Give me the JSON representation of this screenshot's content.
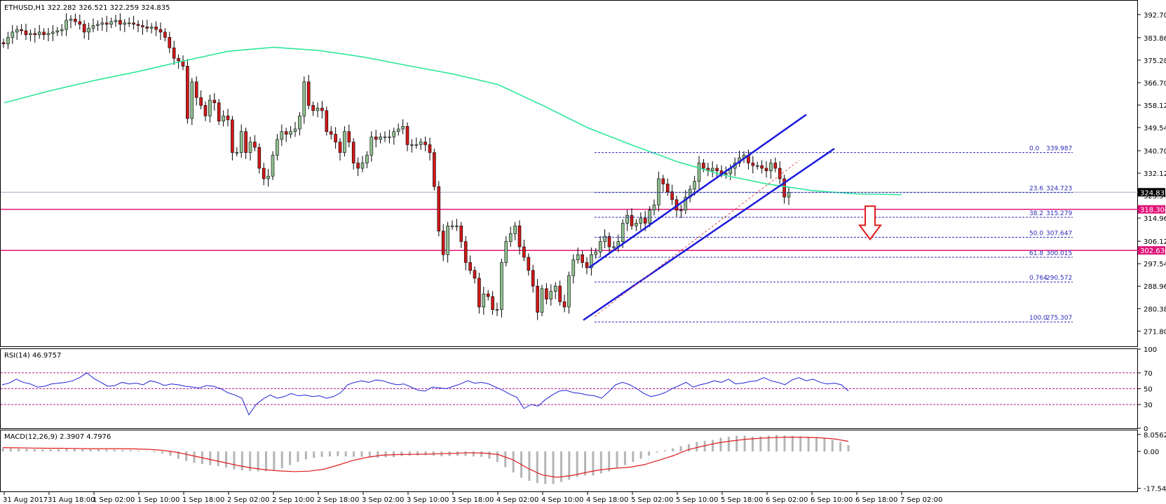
{
  "chart_data": [
    {
      "type": "candlestick",
      "title": "ETHUSD,H1  322.282 326.521 322.259 324.835",
      "price_axis": {
        "ylim": [
          266,
          398
        ],
        "ticks": [
          "392.700",
          "383.860",
          "375.280",
          "366.700",
          "358.120",
          "349.540",
          "340.700",
          "332.120",
          "323.540",
          "314.960",
          "306.120",
          "297.540",
          "288.960",
          "280.380",
          "271.800"
        ]
      },
      "time_axis": {
        "labels": [
          "31 Aug 2017",
          "31 Aug 18:00",
          "1 Sep 02:00",
          "1 Sep 10:00",
          "1 Sep 18:00",
          "2 Sep 02:00",
          "2 Sep 10:00",
          "2 Sep 18:00",
          "3 Sep 02:00",
          "3 Sep 10:00",
          "3 Sep 18:00",
          "4 Sep 02:00",
          "4 Sep 10:00",
          "4 Sep 18:00",
          "5 Sep 02:00",
          "5 Sep 10:00",
          "5 Sep 18:00",
          "6 Sep 02:00",
          "6 Sep 10:00",
          "6 Sep 18:00",
          "7 Sep 02:00"
        ]
      },
      "price_tags": [
        {
          "value": 324.835,
          "label": "324.835",
          "color": "#000000"
        },
        {
          "value": 318.304,
          "label": "318.304",
          "color": "#e0147a"
        },
        {
          "value": 302.63,
          "label": "302.630",
          "color": "#e0147a"
        }
      ],
      "horizontal_lines": [
        {
          "value": 318.304,
          "color": "#e0147a"
        },
        {
          "value": 302.63,
          "color": "#e0147a"
        },
        {
          "value": 324.835,
          "color": "#a0aec0"
        }
      ],
      "fibonacci": [
        {
          "level": "0.0",
          "price": "339.987",
          "value": 339.987
        },
        {
          "level": "23.6",
          "price": "324.723",
          "value": 324.723
        },
        {
          "level": "38.2",
          "price": "315.279",
          "value": 315.279
        },
        {
          "level": "50.0",
          "price": "307.647",
          "value": 307.647
        },
        {
          "level": "61.8",
          "price": "300.015",
          "value": 300.015
        },
        {
          "level": "0.764",
          "price": "290.572",
          "value": 290.572
        },
        {
          "level": "100.0",
          "price": "275.307",
          "value": 275.307
        }
      ],
      "colors": {
        "bull": "#8fbf8f",
        "bear": "#d11919",
        "ma": "#2ee89a",
        "channel": "#1a1adc",
        "fib": "#2b2bb8",
        "arrow": "#e11d1d"
      },
      "candles_close": [
        381.5,
        384.0,
        386.0,
        387.0,
        386.5,
        385.0,
        385.5,
        385.0,
        386.0,
        385.0,
        385.5,
        386.0,
        386.5,
        387.0,
        390.5,
        391.0,
        390.0,
        389.0,
        386.0,
        387.5,
        388.5,
        389.0,
        389.5,
        389.0,
        390.0,
        390.5,
        389.0,
        389.5,
        389.5,
        389.0,
        388.5,
        388.0,
        387.5,
        388.0,
        387.0,
        386.0,
        384.0,
        380.0,
        376.0,
        375.0,
        373.0,
        353.0,
        367.0,
        361.0,
        358.0,
        354.0,
        360.0,
        359.0,
        352.0,
        354.0,
        352.5,
        340.0,
        340.0,
        348.0,
        340.0,
        344.0,
        342.0,
        334.0,
        330.0,
        331.0,
        339.0,
        345.0,
        348.0,
        347.0,
        348.0,
        349.0,
        354.0,
        367.0,
        358.0,
        356.0,
        357.0,
        356.0,
        348.0,
        347.0,
        344.0,
        340.0,
        348.0,
        344.0,
        336.0,
        334.0,
        336.0,
        339.0,
        346.0,
        345.0,
        346.0,
        346.0,
        346.0,
        348.0,
        349.0,
        350.0,
        343.0,
        343.0,
        343.0,
        344.0,
        343.0,
        340.0,
        327.0,
        310.0,
        301.0,
        312.0,
        312.0,
        312.0,
        306.0,
        298.0,
        295.0,
        292.0,
        281.0,
        286.0,
        285.0,
        280.0,
        280.0,
        298.0,
        306.0,
        309.0,
        312.0,
        304.0,
        300.0,
        295.0,
        289.0,
        279.0,
        288.0,
        284.0,
        287.0,
        289.0,
        283.0,
        281.0,
        293.0,
        299.0,
        301.0,
        298.0,
        296.0,
        301.0,
        302.0,
        306.0,
        308.0,
        304.0,
        304.0,
        306.0,
        313.0,
        316.0,
        312.0,
        313.0,
        315.0,
        313.0,
        318.0,
        320.0,
        330.0,
        328.0,
        325.0,
        322.0,
        318.0,
        318.0,
        323.0,
        326.0,
        329.0,
        336.0,
        334.0,
        333.0,
        334.0,
        333.0,
        332.0,
        332.0,
        334.0,
        336.0,
        338.0,
        339.0,
        336.0,
        335.0,
        335.0,
        334.0,
        333.0,
        336.0,
        334.0,
        330.0,
        323.0,
        324.8
      ],
      "moving_average": [
        {
          "date": "31 Aug 2017",
          "value": 359.0
        },
        {
          "date": "31 Aug 18:00",
          "value": 363.5
        },
        {
          "date": "1 Sep 02:00",
          "value": 367.5
        },
        {
          "date": "1 Sep 10:00",
          "value": 371.0
        },
        {
          "date": "1 Sep 18:00",
          "value": 375.0
        },
        {
          "date": "2 Sep 02:00",
          "value": 378.7
        },
        {
          "date": "2 Sep 10:00",
          "value": 380.2
        },
        {
          "date": "2 Sep 18:00",
          "value": 379.0
        },
        {
          "date": "3 Sep 02:00",
          "value": 376.5
        },
        {
          "date": "3 Sep 10:00",
          "value": 373.2
        },
        {
          "date": "3 Sep 18:00",
          "value": 370.0
        },
        {
          "date": "4 Sep 02:00",
          "value": 366.0
        },
        {
          "date": "4 Sep 10:00",
          "value": 358.0
        },
        {
          "date": "4 Sep 18:00",
          "value": 349.5
        },
        {
          "date": "5 Sep 02:00",
          "value": 342.8
        },
        {
          "date": "5 Sep 10:00",
          "value": 336.5
        },
        {
          "date": "5 Sep 18:00",
          "value": 331.5
        },
        {
          "date": "6 Sep 02:00",
          "value": 328.0
        },
        {
          "date": "6 Sep 10:00",
          "value": 325.5
        },
        {
          "date": "6 Sep 18:00",
          "value": 324.2
        },
        {
          "date": "7 Sep 02:00",
          "value": 323.9
        }
      ]
    },
    {
      "type": "line",
      "title": "RSI(14) 46.9757",
      "ylim": [
        0,
        100
      ],
      "ticks": [
        "100",
        "70",
        "50",
        "30",
        "0"
      ],
      "levels": [
        70,
        50,
        30
      ],
      "color": "#2323d4",
      "values": [
        55,
        57,
        62,
        58,
        56,
        52,
        53,
        56,
        57,
        58,
        60,
        64,
        70,
        63,
        58,
        53,
        54,
        58,
        56,
        57,
        55,
        60,
        58,
        54,
        56,
        55,
        53,
        52,
        51,
        54,
        53,
        50,
        45,
        42,
        38,
        17,
        30,
        37,
        42,
        38,
        40,
        44,
        41,
        42,
        40,
        41,
        38,
        40,
        45,
        55,
        58,
        60,
        58,
        61,
        60,
        57,
        55,
        56,
        52,
        48,
        47,
        52,
        51,
        50,
        53,
        56,
        60,
        57,
        58,
        56,
        52,
        48,
        43,
        39,
        25,
        30,
        28,
        36,
        42,
        47,
        48,
        45,
        44,
        42,
        41,
        38,
        46,
        55,
        58,
        55,
        50,
        44,
        40,
        42,
        45,
        50,
        54,
        58,
        52,
        55,
        57,
        60,
        58,
        62,
        56,
        57,
        59,
        60,
        64,
        60,
        58,
        55,
        61,
        64,
        60,
        62,
        58,
        56,
        57,
        55,
        47
      ]
    },
    {
      "type": "bar+line",
      "title": "MACD(12,26,9) 2.3907 4.7976",
      "ylim": [
        -19,
        10
      ],
      "ticks": [
        "8.0562",
        "0.00",
        "-17.5449"
      ],
      "histogram_color": "#b5b5b5",
      "signal_color": "#e11d1d",
      "histogram": [
        1.5,
        1.4,
        1.3,
        1.2,
        1.1,
        1.0,
        1.0,
        1.1,
        1.2,
        1.2,
        1.1,
        1.0,
        1.0,
        0.9,
        0.8,
        0.7,
        0.6,
        0.4,
        0.2,
        -0.5,
        -1.0,
        -2.0,
        -3.5,
        -4.5,
        -5.5,
        -6.0,
        -6.5,
        -7.0,
        -7.8,
        -8.5,
        -9.0,
        -9.3,
        -9.5,
        -9.4,
        -9.0,
        -8.0,
        -6.5,
        -5.0,
        -3.8,
        -3.0,
        -2.6,
        -2.4,
        -2.2,
        -2.4,
        -2.5,
        -2.6,
        -2.8,
        -3.0,
        -2.8,
        -2.7,
        -2.2,
        -2.0,
        -1.9,
        -1.8,
        -2.0,
        -2.3,
        -2.2,
        -2.1,
        -2.2,
        -2.4,
        -2.6,
        -3.4,
        -5.0,
        -7.5,
        -10.0,
        -12.5,
        -14.0,
        -15.0,
        -15.5,
        -15.5,
        -14.5,
        -13.5,
        -12.0,
        -11.5,
        -11.5,
        -10.5,
        -9.5,
        -8.0,
        -6.5,
        -5.0,
        -3.5,
        -2.0,
        -0.5,
        0.5,
        1.5,
        2.5,
        3.5,
        4.5,
        5.0,
        5.5,
        6.5,
        7.0,
        7.5,
        7.5,
        7.0,
        7.2,
        7.5,
        7.8,
        7.6,
        7.4,
        7.2,
        7.0,
        6.8,
        6.5,
        5.5,
        4.5,
        3.0
      ],
      "signal": [
        1.8,
        1.7,
        1.6,
        1.5,
        1.5,
        1.4,
        1.3,
        1.3,
        1.3,
        1.2,
        1.0,
        0.5,
        -0.5,
        -2.0,
        -3.5,
        -5.0,
        -6.5,
        -7.8,
        -8.7,
        -9.3,
        -9.6,
        -9.4,
        -8.5,
        -6.5,
        -4.3,
        -2.8,
        -1.8,
        -1.5,
        -1.4,
        -1.3,
        -1.1,
        -0.9,
        -0.6,
        -0.8,
        -1.5,
        -4.0,
        -8.0,
        -11.2,
        -12.3,
        -11.5,
        -10.0,
        -8.7,
        -8.0,
        -7.5,
        -6.3,
        -4.2,
        -2.0,
        0.8,
        2.5,
        4.0,
        5.0,
        5.8,
        6.3,
        6.6,
        6.8,
        6.7,
        6.5,
        6.0,
        4.8
      ]
    }
  ]
}
